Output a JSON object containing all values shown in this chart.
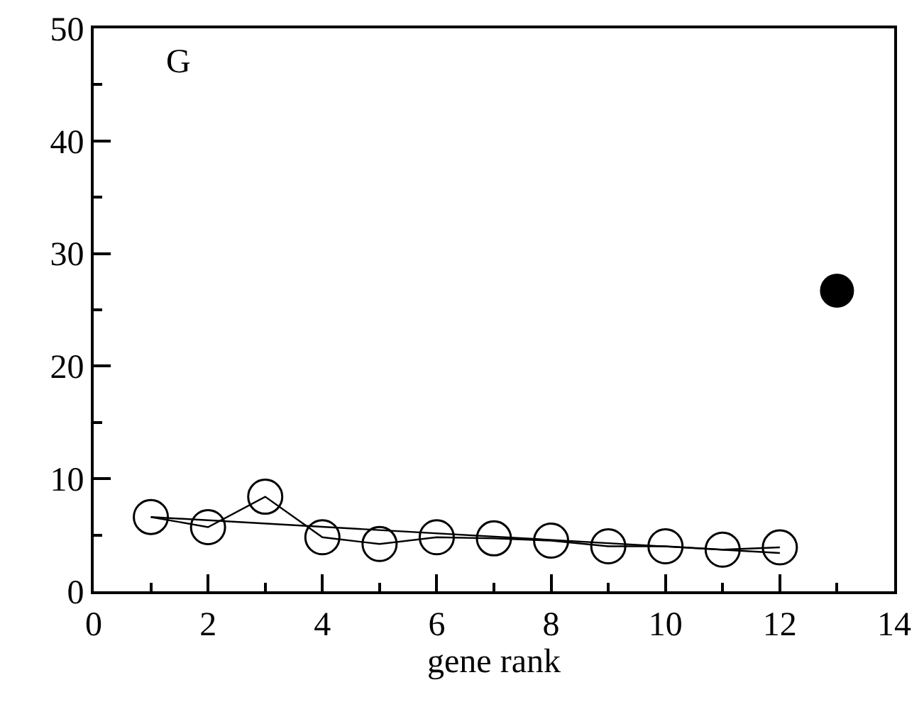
{
  "chart_data": {
    "type": "line",
    "xlabel": "gene rank",
    "x": [
      1,
      2,
      3,
      4,
      5,
      6,
      7,
      8,
      9,
      10,
      11,
      12
    ],
    "series": [
      {
        "color": "#000000",
        "marker": "circle",
        "values": [
          6.6,
          5.7,
          8.4,
          4.8,
          4.2,
          4.8,
          4.7,
          4.5,
          4.0,
          4.0,
          3.7,
          3.9
        ]
      },
      {
        "type": "line",
        "color": "#000000",
        "marker": "none",
        "x": [
          1,
          12
        ],
        "values": [
          6.6,
          3.4
        ]
      },
      {
        "type": "scatter",
        "color": "#000000",
        "marker": "circle",
        "x": [
          13
        ],
        "values": [
          26.7
        ]
      }
    ],
    "xlim": [
      0,
      14
    ],
    "xticks": [
      0,
      2,
      4,
      6,
      8,
      10,
      12,
      14
    ],
    "ylim": [
      0,
      50
    ],
    "yticks": [
      0,
      10,
      20,
      30,
      40,
      50
    ],
    "grid": false,
    "annotations": [
      "G"
    ]
  }
}
